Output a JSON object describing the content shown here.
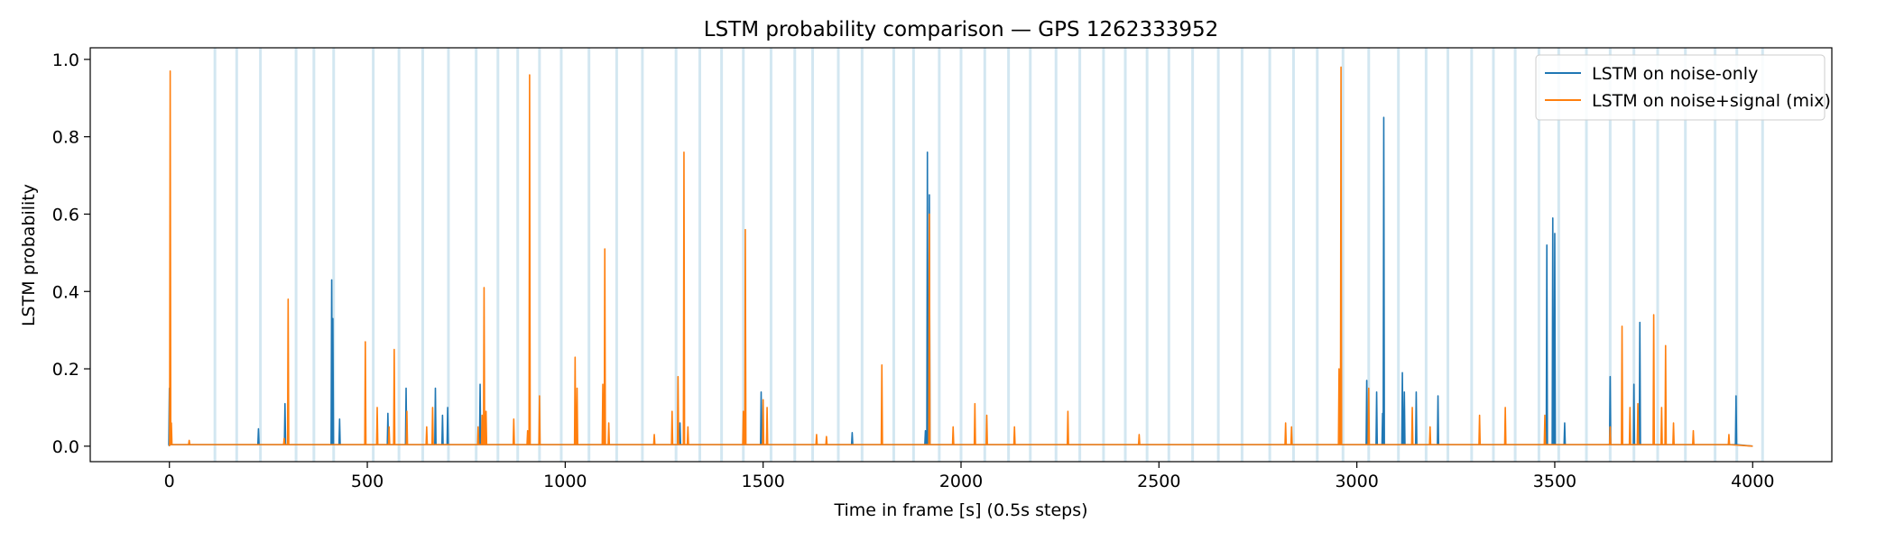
{
  "chart_data": {
    "type": "line",
    "title": "LSTM probability comparison — GPS 1262333952",
    "xlabel": "Time in frame [s] (0.5s steps)",
    "ylabel": "LSTM probability",
    "xlim": [
      -200,
      4200
    ],
    "ylim": [
      -0.04,
      1.03
    ],
    "xticks": [
      0,
      500,
      1000,
      1500,
      2000,
      2500,
      3000,
      3500,
      4000
    ],
    "yticks": [
      0.0,
      0.2,
      0.4,
      0.6,
      0.8,
      1.0
    ],
    "xtick_labels": [
      "0",
      "500",
      "1000",
      "1500",
      "2000",
      "2500",
      "3000",
      "3500",
      "4000"
    ],
    "ytick_labels": [
      "0.0",
      "0.2",
      "0.4",
      "0.6",
      "0.8",
      "1.0"
    ],
    "grid": false,
    "legend_position": "top-right",
    "background_bands": {
      "color": "#9ecae1",
      "x": [
        115,
        170,
        230,
        320,
        365,
        415,
        515,
        580,
        640,
        705,
        775,
        830,
        880,
        935,
        990,
        1060,
        1130,
        1195,
        1280,
        1340,
        1395,
        1450,
        1520,
        1580,
        1625,
        1690,
        1750,
        1830,
        1880,
        1945,
        2000,
        2060,
        2120,
        2175,
        2240,
        2300,
        2360,
        2415,
        2470,
        2525,
        2585,
        2650,
        2710,
        2780,
        2840,
        2900,
        2965,
        3030,
        3105,
        3175,
        3230,
        3290,
        3345,
        3400,
        3460,
        3510,
        3580,
        3640,
        3700,
        3760,
        3830,
        3905,
        3960,
        4025
      ]
    },
    "series": [
      {
        "name": "LSTM on noise-only",
        "color": "#1f77b4",
        "peaks": [
          [
            0,
            0.15
          ],
          [
            225,
            0.045
          ],
          [
            292,
            0.11
          ],
          [
            410,
            0.43
          ],
          [
            413,
            0.33
          ],
          [
            430,
            0.07
          ],
          [
            552,
            0.085
          ],
          [
            598,
            0.15
          ],
          [
            672,
            0.15
          ],
          [
            690,
            0.08
          ],
          [
            703,
            0.1
          ],
          [
            785,
            0.16
          ],
          [
            795,
            0.1
          ],
          [
            1290,
            0.06
          ],
          [
            1495,
            0.14
          ],
          [
            1725,
            0.035
          ],
          [
            1910,
            0.04
          ],
          [
            1915,
            0.76
          ],
          [
            1920,
            0.65
          ],
          [
            3025,
            0.17
          ],
          [
            3050,
            0.14
          ],
          [
            3065,
            0.085
          ],
          [
            3068,
            0.85
          ],
          [
            3115,
            0.19
          ],
          [
            3120,
            0.14
          ],
          [
            3150,
            0.14
          ],
          [
            3205,
            0.13
          ],
          [
            3480,
            0.52
          ],
          [
            3495,
            0.59
          ],
          [
            3500,
            0.55
          ],
          [
            3525,
            0.06
          ],
          [
            3640,
            0.18
          ],
          [
            3700,
            0.16
          ],
          [
            3715,
            0.32
          ],
          [
            3958,
            0.13
          ]
        ]
      },
      {
        "name": "LSTM on noise+signal (mix)",
        "color": "#ff7f0e",
        "peaks": [
          [
            2,
            0.97
          ],
          [
            5,
            0.06
          ],
          [
            50,
            0.015
          ],
          [
            290,
            0.02
          ],
          [
            300,
            0.38
          ],
          [
            495,
            0.27
          ],
          [
            525,
            0.1
          ],
          [
            555,
            0.05
          ],
          [
            568,
            0.25
          ],
          [
            600,
            0.09
          ],
          [
            650,
            0.05
          ],
          [
            665,
            0.1
          ],
          [
            780,
            0.05
          ],
          [
            790,
            0.08
          ],
          [
            795,
            0.41
          ],
          [
            800,
            0.09
          ],
          [
            870,
            0.07
          ],
          [
            905,
            0.04
          ],
          [
            910,
            0.96
          ],
          [
            935,
            0.13
          ],
          [
            1025,
            0.23
          ],
          [
            1030,
            0.15
          ],
          [
            1095,
            0.16
          ],
          [
            1100,
            0.51
          ],
          [
            1110,
            0.06
          ],
          [
            1225,
            0.03
          ],
          [
            1270,
            0.09
          ],
          [
            1285,
            0.18
          ],
          [
            1300,
            0.76
          ],
          [
            1310,
            0.05
          ],
          [
            1450,
            0.09
          ],
          [
            1455,
            0.56
          ],
          [
            1500,
            0.12
          ],
          [
            1510,
            0.1
          ],
          [
            1635,
            0.03
          ],
          [
            1660,
            0.025
          ],
          [
            1800,
            0.21
          ],
          [
            1920,
            0.6
          ],
          [
            1980,
            0.05
          ],
          [
            2035,
            0.11
          ],
          [
            2065,
            0.08
          ],
          [
            2135,
            0.05
          ],
          [
            2270,
            0.09
          ],
          [
            2450,
            0.03
          ],
          [
            2820,
            0.06
          ],
          [
            2835,
            0.05
          ],
          [
            2955,
            0.2
          ],
          [
            2960,
            0.98
          ],
          [
            3030,
            0.15
          ],
          [
            3140,
            0.1
          ],
          [
            3185,
            0.05
          ],
          [
            3310,
            0.08
          ],
          [
            3375,
            0.1
          ],
          [
            3475,
            0.08
          ],
          [
            3640,
            0.05
          ],
          [
            3670,
            0.31
          ],
          [
            3690,
            0.1
          ],
          [
            3710,
            0.11
          ],
          [
            3750,
            0.34
          ],
          [
            3770,
            0.1
          ],
          [
            3780,
            0.26
          ],
          [
            3800,
            0.06
          ],
          [
            3850,
            0.04
          ],
          [
            3940,
            0.03
          ]
        ]
      }
    ]
  }
}
